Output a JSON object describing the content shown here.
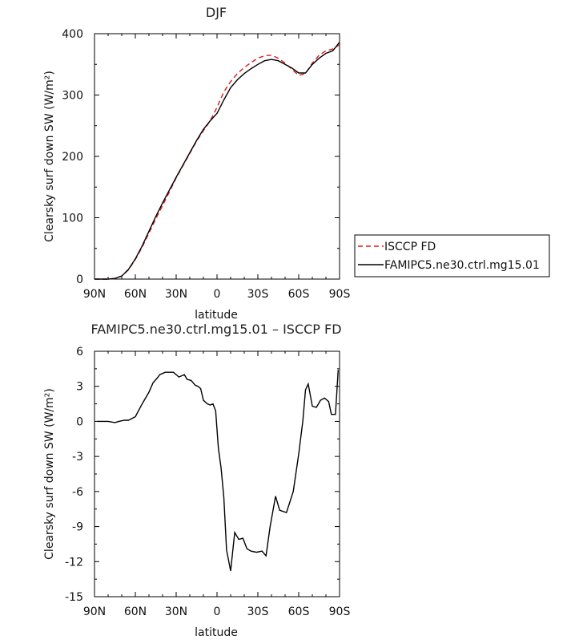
{
  "colors": {
    "isccp": "#e01818",
    "famipc5": "#000000"
  },
  "chart_data": [
    {
      "type": "line",
      "title": "DJF",
      "xlabel": "latitude",
      "ylabel": "Clearsky surf down SW (W/m²)",
      "xlim": [
        -90,
        90
      ],
      "ylim": [
        0,
        400
      ],
      "x_tick_labels": [
        "90N",
        "60N",
        "30N",
        "0",
        "30S",
        "60S",
        "90S"
      ],
      "y_tick_labels": [
        "0",
        "100",
        "200",
        "300",
        "400"
      ],
      "legend": [
        "ISCCP FD",
        "FAMIPC5.ne30.ctrl.mg15.01"
      ],
      "series": [
        {
          "name": "ISCCP FD",
          "style": "dashed",
          "x": [
            -90,
            -85,
            -80,
            -75,
            -70,
            -65,
            -60,
            -55,
            -50,
            -45,
            -40,
            -35,
            -30,
            -25,
            -20,
            -15,
            -10,
            -5,
            0,
            5,
            10,
            15,
            20,
            25,
            30,
            35,
            40,
            45,
            50,
            55,
            60,
            65,
            70,
            75,
            80,
            85,
            90
          ],
          "y": [
            0,
            0,
            0,
            1,
            5,
            15,
            32,
            52,
            75,
            98,
            120,
            142,
            165,
            185,
            205,
            225,
            242,
            258,
            280,
            305,
            322,
            335,
            345,
            353,
            360,
            364,
            365,
            360,
            352,
            342,
            332,
            335,
            352,
            365,
            372,
            375,
            382
          ]
        },
        {
          "name": "FAMIPC5.ne30.ctrl.mg15.01",
          "style": "solid",
          "x": [
            -90,
            -85,
            -80,
            -75,
            -70,
            -65,
            -60,
            -55,
            -50,
            -45,
            -40,
            -35,
            -30,
            -25,
            -20,
            -15,
            -10,
            -5,
            0,
            5,
            10,
            15,
            20,
            25,
            30,
            35,
            40,
            45,
            50,
            55,
            60,
            65,
            70,
            75,
            80,
            85,
            90
          ],
          "y": [
            0,
            0,
            0,
            1,
            5,
            16,
            33,
            54,
            78,
            102,
            124,
            145,
            166,
            186,
            206,
            226,
            244,
            258,
            270,
            292,
            312,
            325,
            335,
            343,
            350,
            356,
            358,
            356,
            350,
            344,
            336,
            336,
            350,
            360,
            368,
            372,
            386
          ]
        }
      ]
    },
    {
      "type": "line",
      "title": "FAMIPC5.ne30.ctrl.mg15.01 – ISCCP FD",
      "xlabel": "latitude",
      "ylabel": "Clearsky surf down SW (W/m²)",
      "xlim": [
        -90,
        90
      ],
      "ylim": [
        -15,
        6
      ],
      "x_tick_labels": [
        "90N",
        "60N",
        "30N",
        "0",
        "30S",
        "60S",
        "90S"
      ],
      "y_tick_labels": [
        "-15",
        "-12",
        "-9",
        "-6",
        "-3",
        "0",
        "3",
        "6"
      ],
      "series": [
        {
          "x": [
            -88,
            -85,
            -80,
            -75,
            -72,
            -68,
            -65,
            -60,
            -55,
            -50,
            -47,
            -44,
            -42,
            -38,
            -35,
            -32,
            -28,
            -24,
            -22,
            -19,
            -16,
            -14,
            -12,
            -10,
            -7,
            -5,
            -3,
            -1,
            1,
            3,
            5,
            7,
            10,
            13,
            16,
            19,
            22,
            25,
            29,
            33,
            36,
            39,
            43,
            46,
            51,
            56,
            60,
            63,
            65,
            67,
            70,
            73,
            76,
            79,
            82,
            84,
            87,
            89
          ],
          "y": [
            0,
            0,
            0,
            -0.1,
            0,
            0.1,
            0.1,
            0.4,
            1.5,
            2.5,
            3.3,
            3.7,
            4.0,
            4.2,
            4.2,
            4.2,
            3.8,
            4.0,
            3.6,
            3.5,
            3.1,
            3.0,
            2.8,
            1.8,
            1.5,
            1.4,
            1.5,
            0.9,
            -2.3,
            -4.0,
            -6.5,
            -11.0,
            -12.8,
            -9.5,
            -10.1,
            -10.0,
            -10.9,
            -11.1,
            -11.2,
            -11.1,
            -11.5,
            -9.0,
            -6.4,
            -7.6,
            -7.8,
            -6.0,
            -2.8,
            0,
            2.7,
            3.2,
            1.3,
            1.2,
            1.8,
            2.0,
            1.7,
            0.6,
            0.6,
            4.4
          ]
        }
      ]
    }
  ]
}
